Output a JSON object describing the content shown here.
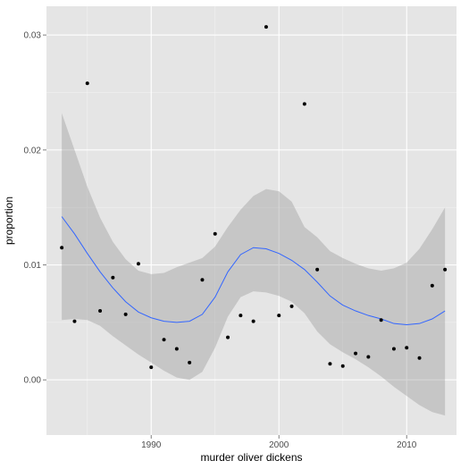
{
  "chart_data": {
    "type": "scatter",
    "title": "",
    "xlabel": "murder oliver dickens",
    "ylabel": "proportion",
    "xlim": [
      1981.8,
      2013.9
    ],
    "ylim": [
      -0.0048,
      0.0325
    ],
    "x_ticks": [
      1990,
      2000,
      2010
    ],
    "x_minor": [
      1985,
      1995,
      2005
    ],
    "y_ticks": [
      0.0,
      0.01,
      0.02,
      0.03
    ],
    "y_minor": [
      0.005,
      0.015,
      0.025
    ],
    "x_tick_labels": [
      "1990",
      "2000",
      "2010"
    ],
    "y_tick_labels": [
      "0.00",
      "0.01",
      "0.02",
      "0.03"
    ],
    "grid": true,
    "legend": "none",
    "colors": {
      "panel": "#e5e5e5",
      "grid_major": "#ffffff",
      "grid_minor": "#f2f2f2",
      "point": "#000000",
      "smooth_line": "#3366ff",
      "ribbon": "#999999"
    },
    "points": {
      "x": [
        1983,
        1984,
        1985,
        1986,
        1987,
        1988,
        1989,
        1990,
        1991,
        1992,
        1993,
        1994,
        1995,
        1996,
        1997,
        1998,
        1999,
        2000,
        2001,
        2002,
        2003,
        2004,
        2005,
        2006,
        2007,
        2008,
        2009,
        2010,
        2011,
        2012,
        2013
      ],
      "y": [
        0.0115,
        0.0051,
        0.0258,
        0.006,
        0.0089,
        0.0057,
        0.0101,
        0.0011,
        0.0035,
        0.0027,
        0.0015,
        0.0087,
        0.0127,
        0.0037,
        0.0056,
        0.0051,
        0.0307,
        0.0056,
        0.0064,
        0.024,
        0.0096,
        0.0014,
        0.0012,
        0.0023,
        0.002,
        0.0052,
        0.0027,
        0.0028,
        0.0019,
        0.0082,
        0.0096
      ]
    },
    "smooth": {
      "x": [
        1983,
        1984,
        1985,
        1986,
        1987,
        1988,
        1989,
        1990,
        1991,
        1992,
        1993,
        1994,
        1995,
        1996,
        1997,
        1998,
        1999,
        2000,
        2001,
        2002,
        2003,
        2004,
        2005,
        2006,
        2007,
        2008,
        2009,
        2010,
        2011,
        2012,
        2013
      ],
      "y": [
        0.0142,
        0.0127,
        0.011,
        0.0094,
        0.008,
        0.0068,
        0.0059,
        0.0054,
        0.0051,
        0.005,
        0.0051,
        0.0057,
        0.0072,
        0.0094,
        0.0109,
        0.0115,
        0.0114,
        0.011,
        0.0104,
        0.0096,
        0.0085,
        0.0073,
        0.0065,
        0.006,
        0.0056,
        0.0053,
        0.0049,
        0.0048,
        0.0049,
        0.0053,
        0.006
      ],
      "lower": [
        0.0052,
        0.0053,
        0.0052,
        0.0047,
        0.0038,
        0.003,
        0.0022,
        0.0015,
        0.0008,
        0.0002,
        0.0,
        0.0007,
        0.0028,
        0.0055,
        0.0072,
        0.0077,
        0.0076,
        0.0073,
        0.0068,
        0.0058,
        0.0042,
        0.0031,
        0.0024,
        0.0018,
        0.0011,
        0.0003,
        -0.0006,
        -0.0014,
        -0.0022,
        -0.0028,
        -0.0031
      ],
      "upper": [
        0.0232,
        0.02,
        0.0168,
        0.0141,
        0.012,
        0.0105,
        0.0095,
        0.0092,
        0.0093,
        0.0098,
        0.0102,
        0.0106,
        0.0116,
        0.0133,
        0.0148,
        0.016,
        0.0166,
        0.0164,
        0.0155,
        0.0133,
        0.0124,
        0.0112,
        0.0106,
        0.0101,
        0.0097,
        0.0095,
        0.0097,
        0.0102,
        0.0114,
        0.0131,
        0.015
      ]
    }
  }
}
